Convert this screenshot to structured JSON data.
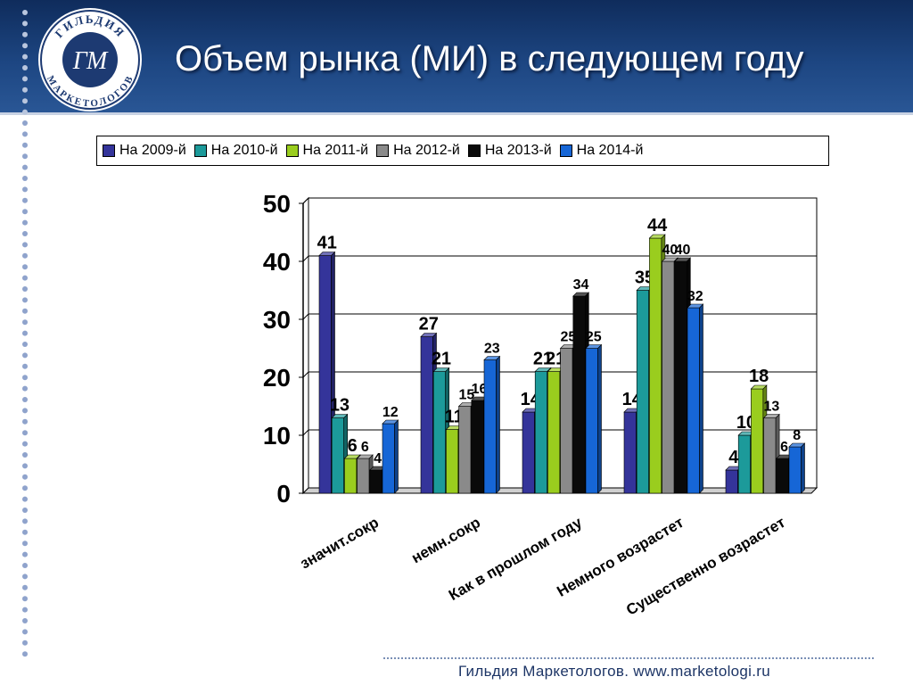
{
  "header": {
    "title": "Объем рынка (МИ) в следующем году",
    "logo_text_top": "ГИЛЬДИЯ",
    "logo_text_bottom": "МАРКЕТОЛОГОВ",
    "logo_monogram": "ГМ"
  },
  "footer": {
    "text": "Гильдия Маркетологов. www.marketologi.ru"
  },
  "colors": {
    "header": "#1d4682",
    "series": [
      "#34349a",
      "#1c9a9a",
      "#9acd1e",
      "#8a8a8a",
      "#0a0a0a",
      "#1666d6"
    ]
  },
  "chart_data": {
    "type": "bar",
    "title": "",
    "xlabel": "",
    "ylabel": "",
    "ylim": [
      0,
      50
    ],
    "yticks": [
      "0",
      "10",
      "20",
      "30",
      "40",
      "50"
    ],
    "grid": true,
    "legend_position": "top",
    "categories": [
      "значит.сокр",
      "немн.сокр",
      "Как в прошлом году",
      "Немного возрастет",
      "Существенно возрастет"
    ],
    "series": [
      {
        "name": "На 2009-й",
        "values": [
          41,
          27,
          14,
          14,
          4
        ]
      },
      {
        "name": "На 2010-й",
        "values": [
          13,
          21,
          21,
          35,
          10
        ]
      },
      {
        "name": "На 2011-й",
        "values": [
          6,
          11,
          21,
          44,
          18
        ]
      },
      {
        "name": "На 2012-й",
        "values": [
          6,
          15,
          25,
          40,
          13
        ]
      },
      {
        "name": "На 2013-й",
        "values": [
          4,
          16,
          34,
          40,
          6
        ]
      },
      {
        "name": "На 2014-й",
        "values": [
          12,
          23,
          25,
          32,
          8
        ]
      }
    ]
  }
}
